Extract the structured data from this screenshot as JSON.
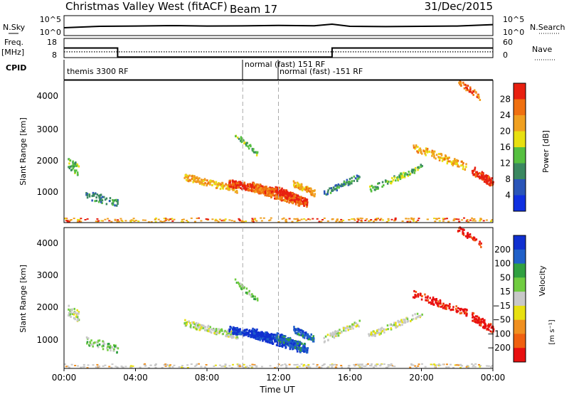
{
  "header": {
    "title": "Christmas Valley West (fitACF)",
    "beam": "Beam 17",
    "date": "31/Dec/2015"
  },
  "colors": {
    "power": [
      "#1030e0",
      "#2a55b8",
      "#3a8860",
      "#56c040",
      "#e8e010",
      "#f0a020",
      "#f07010",
      "#e82010"
    ],
    "velocity": [
      "#1030d0",
      "#2060c8",
      "#30a040",
      "#70cc40",
      "#c8c8c8",
      "#e8e010",
      "#f09020",
      "#f06010",
      "#e81010"
    ]
  },
  "chart_data": [
    {
      "type": "line",
      "panel": "sky-noise",
      "ylabel": "N.Sky",
      "ylabel_right": "N.Search",
      "yticks_left": [
        "10^5",
        "10^0"
      ],
      "yticks_right": [
        "10^5",
        "10^0"
      ],
      "series": [
        {
          "x": [
            0,
            1,
            2,
            4,
            6,
            8,
            10,
            12,
            14,
            15,
            16,
            18,
            20,
            22,
            24
          ],
          "values": [
            0.5,
            0.55,
            0.6,
            0.62,
            0.65,
            0.62,
            0.63,
            0.66,
            0.64,
            0.75,
            0.6,
            0.58,
            0.6,
            0.62,
            0.72
          ]
        }
      ],
      "xlim": [
        0,
        24
      ]
    },
    {
      "type": "line",
      "panel": "frequency",
      "ylabel": "Freq.",
      "yunit": "[MHz]",
      "ylabel_right": "Nave",
      "yticks_left": [
        "18",
        "8"
      ],
      "yticks_right": [
        "60",
        "0"
      ],
      "series": [
        {
          "x": [
            0,
            3,
            3,
            15,
            15,
            24
          ],
          "values": [
            13,
            13,
            8.3,
            8.3,
            13,
            13
          ]
        },
        {
          "x": [
            0,
            24
          ],
          "values": [
            11,
            11
          ]
        }
      ],
      "xlim": [
        0,
        24
      ],
      "ylim": [
        8,
        18
      ]
    },
    {
      "type": "table",
      "panel": "cpid",
      "label": "CPID",
      "segments": [
        {
          "start": 0,
          "end": 10,
          "text": "themis 3300 RF"
        },
        {
          "start": 10,
          "end": 12,
          "text": "normal (fast) 151 RF"
        },
        {
          "start": 12,
          "end": 24,
          "text": "normal (fast) -151 RF"
        }
      ]
    },
    {
      "type": "heatmap",
      "panel": "power",
      "ylabel": "Slant Range [km]",
      "colorbar_label": "Power [dB]",
      "colorbar_ticks": [
        "28",
        "24",
        "20",
        "16",
        "12",
        "8",
        "4"
      ],
      "yticks": [
        "4000",
        "3000",
        "2000",
        "1000"
      ],
      "ylim": [
        180,
        4500
      ],
      "xlim": [
        0,
        24
      ]
    },
    {
      "type": "heatmap",
      "panel": "velocity",
      "ylabel": "Slant Range [km]",
      "xlabel": "Time UT",
      "colorbar_label": "Velocity",
      "colorbar_unit": "[m s⁻¹]",
      "colorbar_ticks": [
        "200",
        "100",
        "50",
        "15",
        "−15",
        "−50",
        "−100",
        "−200"
      ],
      "yticks": [
        "4000",
        "3000",
        "2000",
        "1000"
      ],
      "xticks": [
        "00:00",
        "04:00",
        "08:00",
        "12:00",
        "16:00",
        "20:00",
        "00:00"
      ],
      "ylim": [
        180,
        4500
      ],
      "xlim": [
        0,
        24
      ]
    }
  ]
}
